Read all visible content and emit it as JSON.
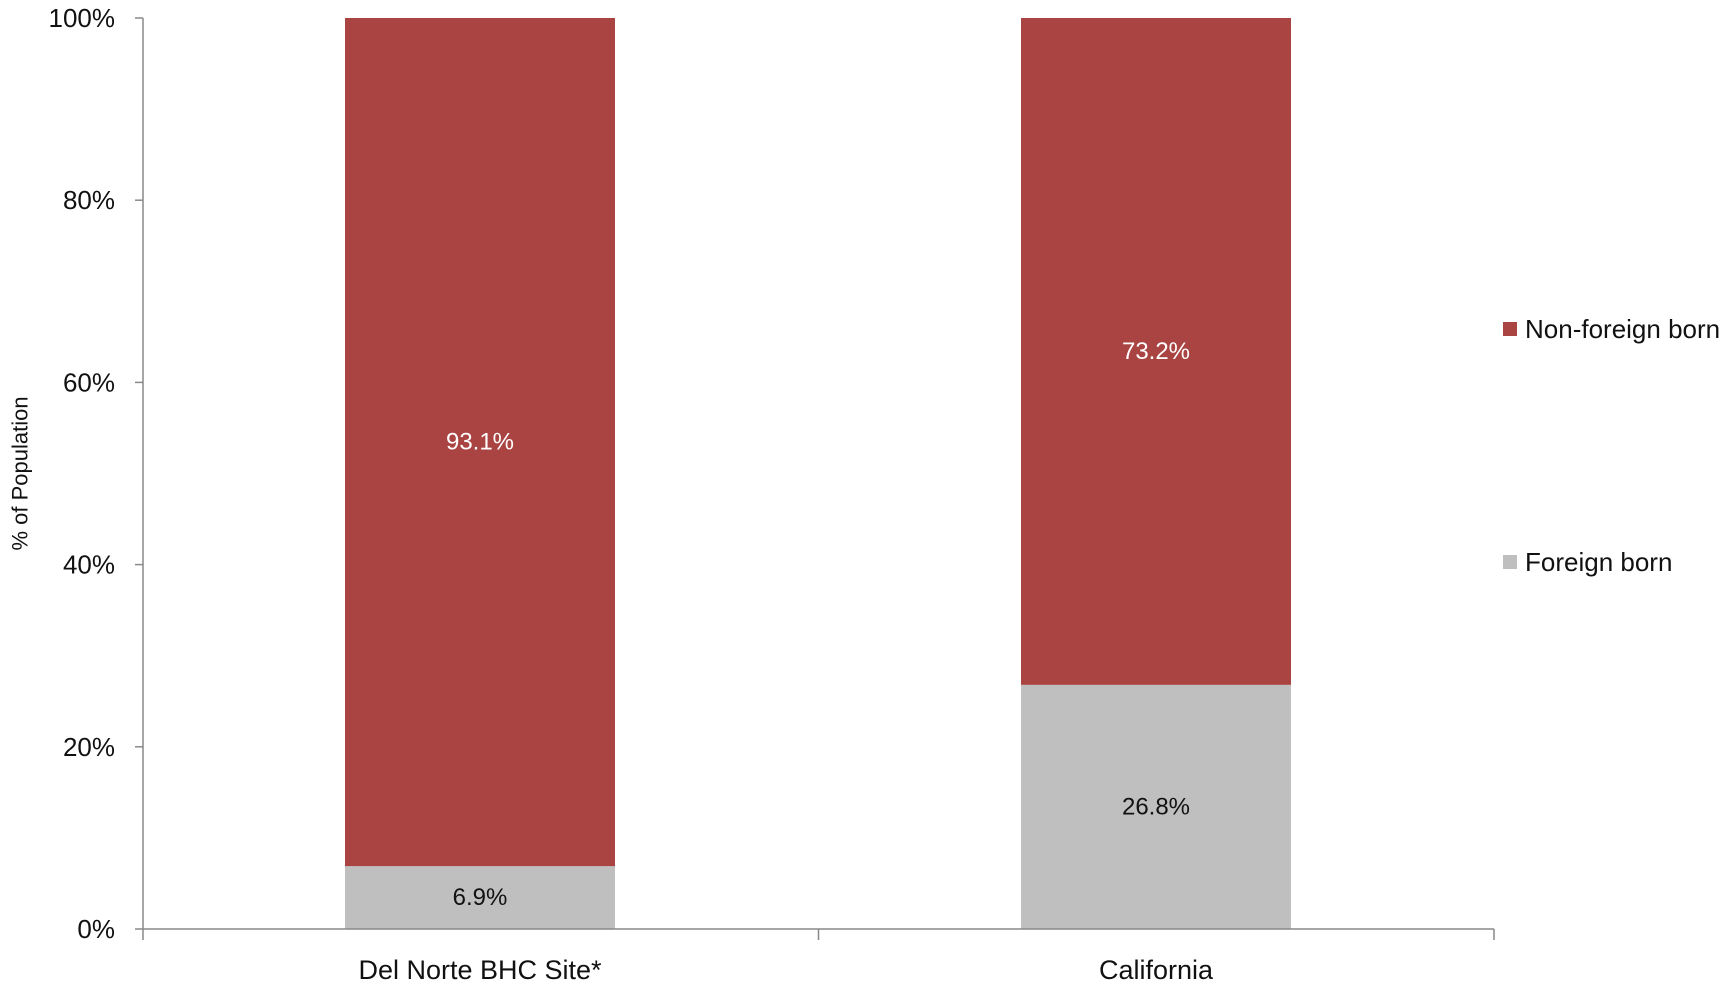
{
  "chart_data": {
    "type": "bar",
    "stacked": true,
    "percent_stacked": true,
    "categories": [
      "Del Norte BHC Site*",
      "California"
    ],
    "series": [
      {
        "name": "Foreign born",
        "values": [
          6.9,
          26.8
        ],
        "labels": [
          "6.9%",
          "26.8%"
        ],
        "color": "#bfbfbf",
        "label_color": "#111111"
      },
      {
        "name": "Non-foreign born",
        "values": [
          93.1,
          73.2
        ],
        "labels": [
          "93.1%",
          "73.2%"
        ],
        "color": "#a94442",
        "label_color": "#ffffff"
      }
    ],
    "ylabel": "% of Population",
    "ylim": [
      0,
      100
    ],
    "yticks": [
      0,
      20,
      40,
      60,
      80,
      100
    ],
    "ytick_labels": [
      "0%",
      "20%",
      "40%",
      "60%",
      "80%",
      "100%"
    ],
    "legend_position": "right",
    "legend_order": [
      "Non-foreign born",
      "Foreign born"
    ],
    "grid": false,
    "axis_color": "#888888"
  }
}
